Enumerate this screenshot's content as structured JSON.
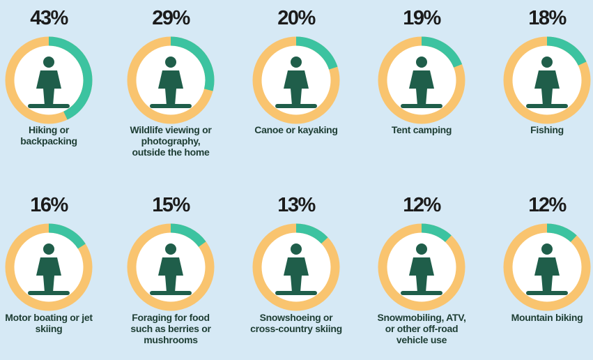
{
  "chart_data": {
    "type": "donut",
    "categories": [
      "Hiking or backpacking",
      "Wildlife viewing or photography, outside the home",
      "Canoe or kayaking",
      "Tent camping",
      "Fishing",
      "Motor boating or jet skiing",
      "Foraging for food such as berries or mushrooms",
      "Snowshoeing or cross-country skiing",
      "Snowmobiling, ATV, or other off-road vehicle use",
      "Mountain biking"
    ],
    "values": [
      43,
      29,
      20,
      19,
      18,
      16,
      15,
      13,
      12,
      12
    ],
    "value_labels": [
      "43%",
      "29%",
      "20%",
      "19%",
      "18%",
      "16%",
      "15%",
      "13%",
      "12%",
      "12%"
    ],
    "color": "#3cc3a0",
    "rest_color": "#f9c46f"
  }
}
